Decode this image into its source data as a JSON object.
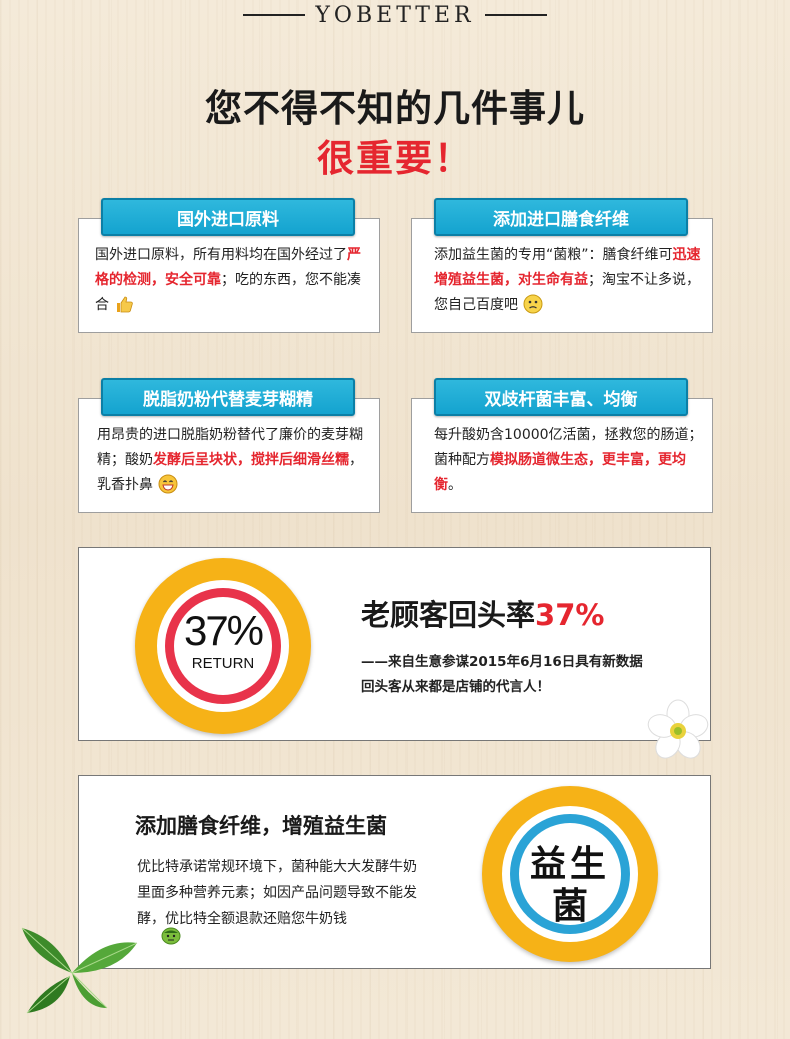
{
  "brand": {
    "name": "YOBETTER"
  },
  "headline": {
    "line1": "您不得不知的几件事儿",
    "line2": "很重要！"
  },
  "cards": [
    {
      "tab": "国外进口原料",
      "t1": "国外进口原料，所有用料均在国外经过了",
      "h1": "严格的检测，安全可靠",
      "t2": "；吃的东西，您不能凑合",
      "h2": "",
      "t3": ""
    },
    {
      "tab": "添加进口膳食纤维",
      "t1": "添加益生菌的专用“菌粮”：膳食纤维可",
      "h1": "迅速增殖益生菌，对生命有益",
      "t2": "；淘宝不让多说，您自己百度吧",
      "h2": "",
      "t3": ""
    },
    {
      "tab": "脱脂奶粉代替麦芽糊精",
      "t1": "用昂贵的进口脱脂奶粉替代了廉价的麦芽糊精；酸奶",
      "h1": "发酵后呈块状，搅拌后细滑丝糯",
      "t2": "，乳香扑鼻",
      "h2": "",
      "t3": ""
    },
    {
      "tab": "双歧杆菌丰富、均衡",
      "t1": "每升酸奶含10000亿活菌，拯救您的肠道；菌种配方",
      "h1": "模拟肠道微生态，更丰富，更均衡",
      "t2": "。",
      "h2": "",
      "t3": ""
    }
  ],
  "return_section": {
    "badge_number": "37%",
    "badge_label": "RETURN",
    "title_prefix": "老顾客回头率",
    "title_value": "37%",
    "source_line1": "——来自生意参谋2015年6月16日具有新数据",
    "source_line2": "回头客从来都是店铺的代言人！"
  },
  "fiber_section": {
    "title": "添加膳食纤维，增殖益生菌",
    "body": "优比特承诺常规环境下，菌种能大大发酵牛奶里面多种营养元素；如因产品问题导致不能发酵，优比特全额退款还赔您牛奶钱",
    "badge_line1": "益生",
    "badge_line2": "菌"
  },
  "colors": {
    "accent_red": "#e5262f",
    "tab_blue": "#14a3cf",
    "ring_orange": "#f6b217",
    "ring_red": "#e8334a",
    "ring_blue": "#2aa3d6"
  },
  "icons": [
    "thumbs-up-icon",
    "worried-face-icon",
    "grin-face-icon",
    "smug-face-icon",
    "flower-icon",
    "leaf-icon"
  ]
}
